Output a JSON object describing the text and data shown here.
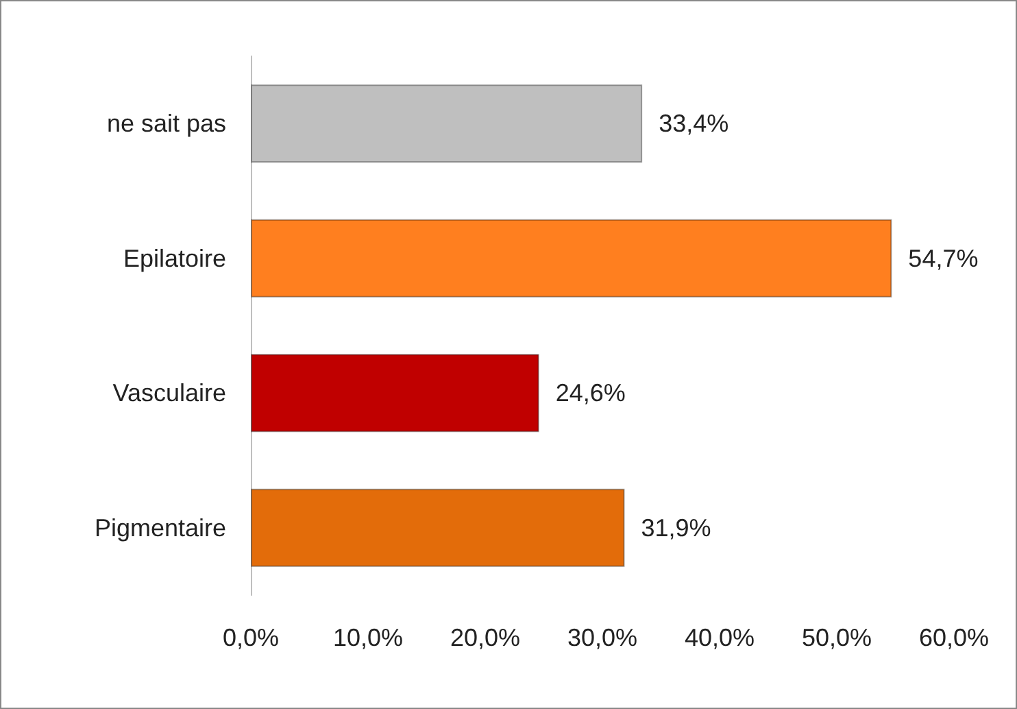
{
  "chart_data": {
    "type": "bar",
    "orientation": "horizontal",
    "categories": [
      "ne sait pas",
      "Epilatoire",
      "Vasculaire",
      "Pigmentaire"
    ],
    "values": [
      33.4,
      54.7,
      24.6,
      31.9
    ],
    "colors": [
      "#bfbfbf",
      "#ff7f1f",
      "#c00000",
      "#e36c0a"
    ],
    "value_labels": [
      "33,4%",
      "54,7%",
      "24,6%",
      "31,9%"
    ],
    "xlim": [
      0,
      60
    ],
    "xticks": [
      {
        "value": 0,
        "label": "0,0%"
      },
      {
        "value": 10,
        "label": "10,0%"
      },
      {
        "value": 20,
        "label": "20,0%"
      },
      {
        "value": 30,
        "label": "30,0%"
      },
      {
        "value": 40,
        "label": "40,0%"
      },
      {
        "value": 50,
        "label": "50,0%"
      },
      {
        "value": 60,
        "label": "60,0%"
      }
    ],
    "grid": false
  }
}
